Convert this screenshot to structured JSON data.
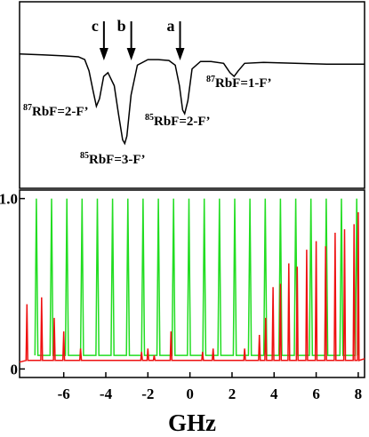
{
  "chart_data": [
    {
      "type": "line",
      "xlim": [
        -8.1,
        8.3
      ],
      "ylim": [
        0,
        1
      ],
      "x": [
        -8.1,
        -7,
        -6,
        -5.3,
        -5,
        -4.8,
        -4.6,
        -4.45,
        -4.3,
        -4.1,
        -3.9,
        -3.6,
        -3.4,
        -3.2,
        -3.1,
        -3.0,
        -2.8,
        -2.5,
        -2.0,
        -1.5,
        -1.0,
        -0.7,
        -0.5,
        -0.35,
        -0.25,
        -0.1,
        0.1,
        0.5,
        1.0,
        1.6,
        1.9,
        2.1,
        2.3,
        2.6,
        3.5,
        5,
        6.5,
        8.3
      ],
      "series": [
        {
          "color": "#000000",
          "values": [
            0.72,
            0.715,
            0.71,
            0.705,
            0.69,
            0.63,
            0.52,
            0.44,
            0.48,
            0.6,
            0.62,
            0.55,
            0.4,
            0.26,
            0.24,
            0.28,
            0.5,
            0.66,
            0.69,
            0.69,
            0.685,
            0.66,
            0.55,
            0.42,
            0.4,
            0.47,
            0.64,
            0.68,
            0.68,
            0.67,
            0.62,
            0.6,
            0.63,
            0.67,
            0.675,
            0.67,
            0.665,
            0.665
          ]
        }
      ],
      "arrows": [
        {
          "label": "c",
          "x": -4.09
        },
        {
          "label": "b",
          "x": -2.79
        },
        {
          "label": "a",
          "x": -0.47
        }
      ],
      "peak_labels": [
        {
          "isotope": "87",
          "text": "RbF=2-F’"
        },
        {
          "isotope": "85",
          "text": "RbF=3-F’"
        },
        {
          "isotope": "85",
          "text": "RbF=2-F’"
        },
        {
          "isotope": "87",
          "text": "RbF=1-F’"
        }
      ]
    },
    {
      "type": "line",
      "xlabel": "GHz",
      "xlim": [
        -8.1,
        8.3
      ],
      "ylim": [
        -0.05,
        1.05
      ],
      "xticks": [
        -6,
        -4,
        -2,
        0,
        2,
        4,
        6,
        8
      ],
      "yticks": [
        0,
        {
          "value": 1,
          "label": "1.0"
        }
      ],
      "series": [
        {
          "color": "#22dd22",
          "x": [
            -7.37,
            -7.3,
            -7.23,
            -6.65,
            -6.58,
            -6.51,
            -5.92,
            -5.85,
            -5.78,
            -5.2,
            -5.13,
            -5.06,
            -4.47,
            -4.4,
            -4.33,
            -3.75,
            -3.68,
            -3.61,
            -3.02,
            -2.95,
            -2.88,
            -2.3,
            -2.23,
            -2.16,
            -1.57,
            -1.5,
            -1.43,
            -0.85,
            -0.78,
            -0.71,
            -0.12,
            -0.05,
            0.02,
            0.61,
            0.68,
            0.75,
            1.33,
            1.4,
            1.47,
            2.06,
            2.13,
            2.2,
            2.78,
            2.85,
            2.92,
            3.51,
            3.58,
            3.65,
            4.23,
            4.3,
            4.37,
            4.96,
            5.03,
            5.1,
            5.68,
            5.75,
            5.82,
            6.41,
            6.48,
            6.55,
            7.13,
            7.2,
            7.27,
            7.86,
            7.93,
            8.0
          ],
          "values": [
            0.08,
            1,
            0.08,
            0.08,
            1,
            0.08,
            0.08,
            1,
            0.08,
            0.08,
            1,
            0.08,
            0.08,
            1,
            0.08,
            0.08,
            1,
            0.08,
            0.08,
            1,
            0.08,
            0.08,
            1,
            0.08,
            0.08,
            1,
            0.08,
            0.08,
            1,
            0.08,
            0.08,
            1,
            0.08,
            0.08,
            1,
            0.08,
            0.08,
            1,
            0.08,
            0.08,
            1,
            0.08,
            0.08,
            1,
            0.08,
            0.08,
            1,
            0.08,
            0.08,
            1,
            0.08,
            0.08,
            1,
            0.08,
            0.08,
            1,
            0.08,
            0.08,
            1,
            0.08,
            0.08,
            1,
            0.08,
            0.08,
            1,
            0.08
          ]
        },
        {
          "color": "#ee1111",
          "x": [
            -8.1,
            -7.79,
            -7.75,
            -7.71,
            -7.09,
            -7.05,
            -7.01,
            -6.49,
            -6.45,
            -6.41,
            -6.04,
            -6.0,
            -5.96,
            -5.24,
            -5.2,
            -5.16,
            -2.34,
            -2.3,
            -2.26,
            -2.04,
            -2.0,
            -1.96,
            -1.74,
            -1.7,
            -1.66,
            -0.94,
            -0.9,
            -0.86,
            0.56,
            0.6,
            0.64,
            1.06,
            1.1,
            1.14,
            2.56,
            2.6,
            2.64,
            3.26,
            3.3,
            3.34,
            3.56,
            3.6,
            3.64,
            3.91,
            3.95,
            3.99,
            4.26,
            4.3,
            4.34,
            4.66,
            4.7,
            4.74,
            5.06,
            5.1,
            5.14,
            5.51,
            5.55,
            5.59,
            5.96,
            6.0,
            6.04,
            6.41,
            6.45,
            6.49,
            6.86,
            6.9,
            6.94,
            7.31,
            7.35,
            7.39,
            7.76,
            7.8,
            7.84,
            7.96,
            8.0,
            8.04,
            8.3
          ],
          "values": [
            0.04,
            0.05,
            0.38,
            0.05,
            0.05,
            0.42,
            0.05,
            0.05,
            0.3,
            0.05,
            0.05,
            0.22,
            0.05,
            0.05,
            0.12,
            0.05,
            0.05,
            0.1,
            0.05,
            0.05,
            0.12,
            0.05,
            0.05,
            0.08,
            0.05,
            0.05,
            0.22,
            0.05,
            0.05,
            0.1,
            0.05,
            0.05,
            0.12,
            0.05,
            0.05,
            0.12,
            0.05,
            0.05,
            0.2,
            0.05,
            0.05,
            0.3,
            0.05,
            0.05,
            0.48,
            0.05,
            0.05,
            0.5,
            0.05,
            0.05,
            0.62,
            0.05,
            0.05,
            0.6,
            0.05,
            0.05,
            0.7,
            0.05,
            0.05,
            0.75,
            0.05,
            0.05,
            0.72,
            0.05,
            0.05,
            0.8,
            0.05,
            0.05,
            0.82,
            0.05,
            0.05,
            0.85,
            0.05,
            0.05,
            0.92,
            0.05,
            0.06
          ]
        }
      ]
    }
  ]
}
